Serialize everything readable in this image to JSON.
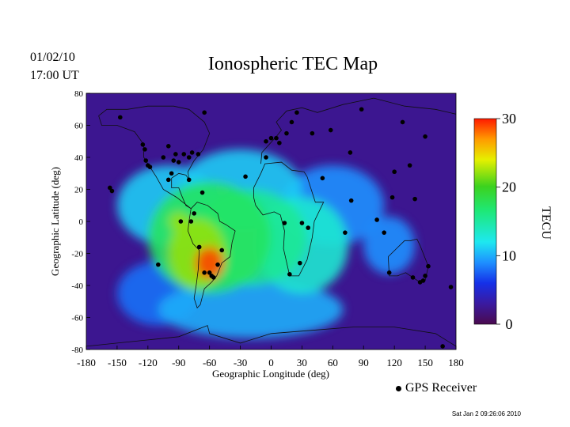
{
  "header": {
    "date": "01/02/10",
    "time": "17:00 UT"
  },
  "footer": {
    "timestamp": "Sat Jan  2 09:26:06 2010",
    "receiver_legend": "GPS Receiver"
  },
  "chart_data": {
    "type": "heatmap",
    "title": "Ionospheric TEC Map",
    "xlabel": "Geographic Longitude (deg)",
    "ylabel": "Geographic Latitude (deg)",
    "xlim": [
      -180,
      180
    ],
    "ylim": [
      -80,
      80
    ],
    "x_ticks": [
      -180,
      -150,
      -120,
      -90,
      -60,
      -30,
      0,
      30,
      60,
      90,
      120,
      150,
      180
    ],
    "y_ticks": [
      -80,
      -60,
      -40,
      -20,
      0,
      20,
      40,
      60,
      80
    ],
    "colorbar": {
      "label": "TECU",
      "range": [
        0,
        30
      ],
      "ticks": [
        0,
        10,
        20,
        30
      ]
    },
    "tec_blobs": [
      {
        "lon": -60,
        "lat": -26,
        "tec": 29,
        "rlon": 14,
        "rlat": 10
      },
      {
        "lon": -72,
        "lat": -20,
        "tec": 22,
        "rlon": 28,
        "rlat": 22
      },
      {
        "lon": -90,
        "lat": 0,
        "tec": 22,
        "rlon": 10,
        "rlat": 6
      },
      {
        "lon": -60,
        "lat": -10,
        "tec": 17,
        "rlon": 60,
        "rlat": 35
      },
      {
        "lon": -20,
        "lat": -10,
        "tec": 15,
        "rlon": 55,
        "rlat": 30
      },
      {
        "lon": 30,
        "lat": -15,
        "tec": 13,
        "rlon": 45,
        "rlat": 30
      },
      {
        "lon": -30,
        "lat": 20,
        "tec": 11,
        "rlon": 60,
        "rlat": 25
      },
      {
        "lon": -100,
        "lat": 10,
        "tec": 11,
        "rlon": 50,
        "rlat": 25
      },
      {
        "lon": 60,
        "lat": 10,
        "tec": 9,
        "rlon": 50,
        "rlat": 25
      },
      {
        "lon": 115,
        "lat": -15,
        "tec": 9,
        "rlon": 25,
        "rlat": 18
      },
      {
        "lon": -20,
        "lat": -55,
        "tec": 10,
        "rlon": 90,
        "rlat": 18
      },
      {
        "lon": -110,
        "lat": -45,
        "tec": 8,
        "rlon": 40,
        "rlat": 20
      }
    ],
    "receivers": [
      [
        -147,
        65
      ],
      [
        -65,
        68
      ],
      [
        -125,
        48
      ],
      [
        -123,
        45
      ],
      [
        -122,
        38
      ],
      [
        -120,
        35
      ],
      [
        -118,
        34
      ],
      [
        -105,
        40
      ],
      [
        -100,
        47
      ],
      [
        -95,
        38
      ],
      [
        -93,
        42
      ],
      [
        -90,
        37
      ],
      [
        -85,
        42
      ],
      [
        -80,
        40
      ],
      [
        -77,
        43
      ],
      [
        -71,
        42
      ],
      [
        -97,
        30
      ],
      [
        -100,
        26
      ],
      [
        -80,
        26
      ],
      [
        -67,
        18
      ],
      [
        -157,
        21
      ],
      [
        -155,
        19
      ],
      [
        -88,
        0
      ],
      [
        -78,
        0
      ],
      [
        -75,
        5
      ],
      [
        -70,
        -16
      ],
      [
        -65,
        -32
      ],
      [
        -60,
        -32
      ],
      [
        -58,
        -34
      ],
      [
        -56,
        -35
      ],
      [
        -52,
        -27
      ],
      [
        -48,
        -18
      ],
      [
        -110,
        -27
      ],
      [
        -25,
        28
      ],
      [
        -5,
        40
      ],
      [
        -5,
        50
      ],
      [
        0,
        52
      ],
      [
        5,
        52
      ],
      [
        8,
        49
      ],
      [
        15,
        55
      ],
      [
        20,
        62
      ],
      [
        25,
        68
      ],
      [
        40,
        55
      ],
      [
        58,
        57
      ],
      [
        77,
        43
      ],
      [
        88,
        70
      ],
      [
        128,
        62
      ],
      [
        150,
        53
      ],
      [
        135,
        35
      ],
      [
        120,
        31
      ],
      [
        118,
        15
      ],
      [
        140,
        14
      ],
      [
        78,
        13
      ],
      [
        50,
        27
      ],
      [
        13,
        -1
      ],
      [
        30,
        -1
      ],
      [
        36,
        -4
      ],
      [
        28,
        -26
      ],
      [
        18,
        -33
      ],
      [
        72,
        -7
      ],
      [
        103,
        1
      ],
      [
        110,
        -7
      ],
      [
        115,
        -32
      ],
      [
        138,
        -35
      ],
      [
        145,
        -38
      ],
      [
        150,
        -34
      ],
      [
        148,
        -37
      ],
      [
        153,
        -28
      ],
      [
        175,
        -41
      ],
      [
        167,
        -78
      ]
    ]
  }
}
